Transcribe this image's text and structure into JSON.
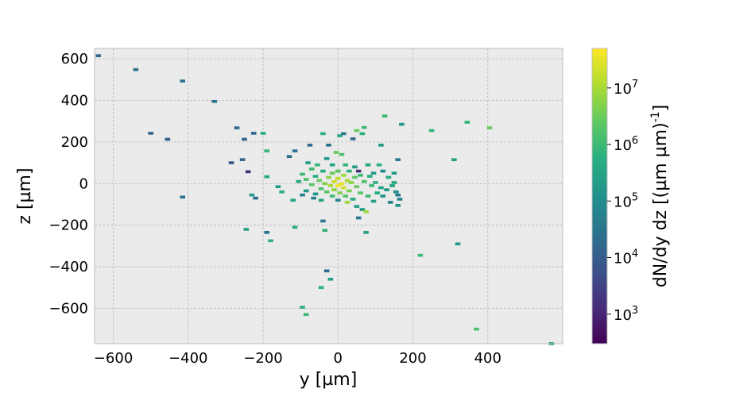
{
  "chart_data": {
    "type": "heatmap",
    "title": "",
    "xlabel": "y [µm]",
    "ylabel": "z [µm]",
    "xlim": [
      -650,
      600
    ],
    "ylim": [
      -770,
      650
    ],
    "xticks": [
      -600,
      -400,
      -200,
      0,
      200,
      400
    ],
    "yticks": [
      -600,
      -400,
      -200,
      0,
      200,
      400,
      600
    ],
    "xtick_labels": [
      "−600",
      "−400",
      "−200",
      "0",
      "200",
      "400"
    ],
    "ytick_labels": [
      "−600",
      "−400",
      "−200",
      "0",
      "200",
      "400",
      "600"
    ],
    "grid": true,
    "background": "#ebebeb",
    "bin_size_um": 14,
    "colorbar": {
      "label": "dN/dy dz [(µm µm)",
      "label_superscript": "-1",
      "label_close": "]",
      "scale": "log",
      "range": [
        300,
        50000000
      ],
      "tick_values": [
        1000,
        10000,
        100000,
        1000000,
        10000000
      ],
      "tick_base": "10",
      "tick_exponents": [
        "3",
        "4",
        "5",
        "6",
        "7"
      ],
      "colormap": "viridis"
    },
    "bins": [
      [
        -640,
        615,
        20000
      ],
      [
        -540,
        548,
        30000
      ],
      [
        -415,
        493,
        30000
      ],
      [
        -330,
        395,
        30000
      ],
      [
        -270,
        268,
        20000
      ],
      [
        -250,
        213,
        15000
      ],
      [
        -225,
        242,
        20000
      ],
      [
        -200,
        242,
        500000
      ],
      [
        -500,
        242,
        15000
      ],
      [
        -455,
        213,
        12000
      ],
      [
        -285,
        100,
        8000
      ],
      [
        -255,
        115,
        12000
      ],
      [
        -240,
        57,
        1500
      ],
      [
        -190,
        157,
        800000
      ],
      [
        -190,
        33,
        500000
      ],
      [
        -230,
        -55,
        200000
      ],
      [
        -220,
        -70,
        20000
      ],
      [
        -245,
        -220,
        300000
      ],
      [
        -190,
        -235,
        30000
      ],
      [
        -180,
        -275,
        700000
      ],
      [
        -415,
        -65,
        30000
      ],
      [
        -160,
        -15,
        200000
      ],
      [
        -150,
        -40,
        600000
      ],
      [
        -130,
        130,
        20000
      ],
      [
        -115,
        157,
        30000
      ],
      [
        -120,
        -80,
        300000
      ],
      [
        -105,
        10,
        400000
      ],
      [
        -95,
        45,
        1000000
      ],
      [
        -95,
        -55,
        60000
      ],
      [
        -85,
        20,
        1500000
      ],
      [
        -80,
        100,
        300000
      ],
      [
        -85,
        -35,
        200000
      ],
      [
        -75,
        185,
        20000
      ],
      [
        -70,
        70,
        1000000
      ],
      [
        -70,
        -5,
        2000000
      ],
      [
        -65,
        -70,
        60000
      ],
      [
        -60,
        35,
        600000
      ],
      [
        -60,
        -50,
        150000
      ],
      [
        -55,
        90,
        800000
      ],
      [
        -50,
        15,
        3000000
      ],
      [
        -45,
        -25,
        1500000
      ],
      [
        -45,
        -80,
        300000
      ],
      [
        -40,
        240,
        500000
      ],
      [
        -40,
        60,
        400000
      ],
      [
        -35,
        0,
        5000000
      ],
      [
        -30,
        120,
        200000
      ],
      [
        -30,
        -40,
        2000000
      ],
      [
        -25,
        185,
        30000
      ],
      [
        -25,
        30,
        6000000
      ],
      [
        -20,
        -10,
        10000000
      ],
      [
        -15,
        90,
        300000
      ],
      [
        -15,
        50,
        3000000
      ],
      [
        -15,
        -60,
        1000000
      ],
      [
        -10,
        10,
        20000000
      ],
      [
        -10,
        -30,
        6000000
      ],
      [
        -5,
        150,
        3000000
      ],
      [
        0,
        -10,
        40000000
      ],
      [
        0,
        25,
        15000000
      ],
      [
        0,
        60,
        2000000
      ],
      [
        0,
        -80,
        60000
      ],
      [
        5,
        230,
        400000
      ],
      [
        5,
        -45,
        5000000
      ],
      [
        10,
        140,
        1500000
      ],
      [
        10,
        0,
        30000000
      ],
      [
        15,
        240,
        40000
      ],
      [
        15,
        40,
        8000000
      ],
      [
        15,
        -20,
        20000000
      ],
      [
        20,
        90,
        800000
      ],
      [
        20,
        -60,
        2000000
      ],
      [
        25,
        15,
        10000000
      ],
      [
        25,
        -90,
        8000000
      ],
      [
        30,
        60,
        600000
      ],
      [
        30,
        -35,
        4000000
      ],
      [
        35,
        5,
        6000000
      ],
      [
        40,
        215,
        20000
      ],
      [
        40,
        -75,
        500000
      ],
      [
        45,
        80,
        200000
      ],
      [
        45,
        30,
        2000000
      ],
      [
        50,
        -15,
        3000000
      ],
      [
        50,
        255,
        3000000
      ],
      [
        50,
        -110,
        300000
      ],
      [
        55,
        60,
        1500
      ],
      [
        55,
        -165,
        30000
      ],
      [
        60,
        40,
        1000000
      ],
      [
        60,
        -45,
        2000000
      ],
      [
        65,
        240,
        600000
      ],
      [
        65,
        -125,
        200000
      ],
      [
        70,
        10,
        1500000
      ],
      [
        70,
        270,
        1000000
      ],
      [
        75,
        -135,
        8000000
      ],
      [
        80,
        90,
        300000
      ],
      [
        80,
        -60,
        1000000
      ],
      [
        85,
        35,
        600000
      ],
      [
        90,
        -10,
        1000000
      ],
      [
        95,
        -85,
        300000
      ],
      [
        95,
        50,
        200000
      ],
      [
        100,
        5,
        700000
      ],
      [
        105,
        -45,
        500000
      ],
      [
        110,
        90,
        600000
      ],
      [
        115,
        -20,
        300000
      ],
      [
        115,
        185,
        200000
      ],
      [
        120,
        60,
        100000
      ],
      [
        120,
        -60,
        150000
      ],
      [
        125,
        325,
        1000000
      ],
      [
        130,
        -30,
        200000
      ],
      [
        135,
        30,
        500000
      ],
      [
        140,
        -90,
        60000
      ],
      [
        145,
        -10,
        300000
      ],
      [
        150,
        50,
        200000
      ],
      [
        155,
        -40,
        100000
      ],
      [
        160,
        115,
        30000
      ],
      [
        160,
        -55,
        40000
      ],
      [
        165,
        -75,
        60000
      ],
      [
        170,
        285,
        200000
      ],
      [
        160,
        -105,
        150000
      ],
      [
        150,
        5,
        400000
      ],
      [
        250,
        255,
        800000
      ],
      [
        310,
        115,
        300000
      ],
      [
        345,
        295,
        700000
      ],
      [
        405,
        268,
        3000000
      ],
      [
        220,
        -345,
        1000000
      ],
      [
        320,
        -290,
        200000
      ],
      [
        370,
        -700,
        1500000
      ],
      [
        570,
        -770,
        300000
      ],
      [
        -115,
        -210,
        500000
      ],
      [
        -30,
        -420,
        20000
      ],
      [
        -20,
        -460,
        300000
      ],
      [
        -45,
        -500,
        600000
      ],
      [
        -95,
        -595,
        700000
      ],
      [
        -85,
        -630,
        1000000
      ],
      [
        -40,
        -180,
        30000
      ],
      [
        -35,
        -225,
        700000
      ],
      [
        75,
        -235,
        300000
      ]
    ]
  }
}
